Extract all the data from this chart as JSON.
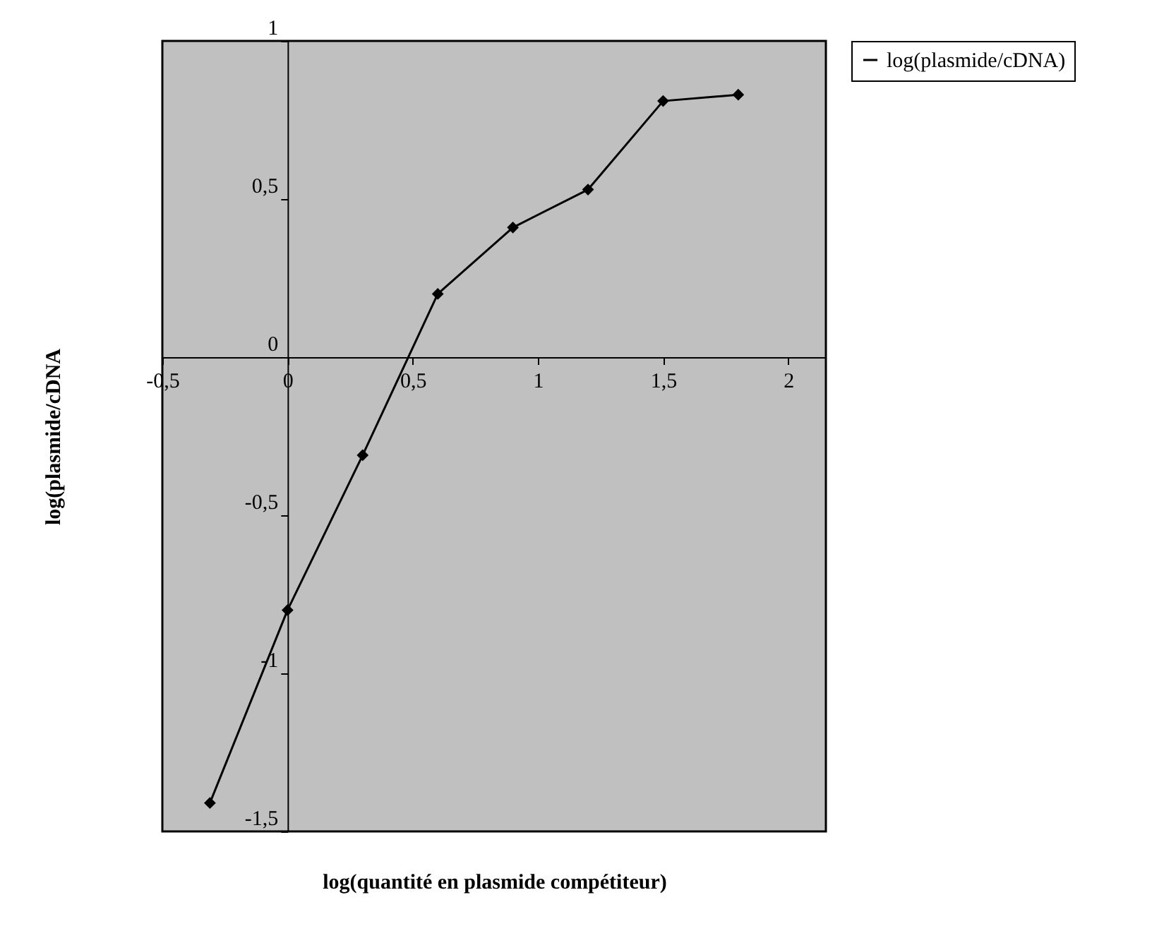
{
  "chart_data": {
    "type": "line",
    "xlabel": "log(quantité en plasmide compétiteur)",
    "ylabel": "log(plasmide/cDNA",
    "x": [
      -0.31,
      0,
      0.3,
      0.6,
      0.9,
      1.2,
      1.5,
      1.8
    ],
    "series": [
      {
        "name": "log(plasmide/cDNA)",
        "color": "#000000",
        "values": [
          -1.41,
          -0.8,
          -0.31,
          0.2,
          0.41,
          0.53,
          0.81,
          0.83
        ]
      }
    ],
    "xlim": [
      -0.5,
      2.15
    ],
    "ylim": [
      -1.5,
      1
    ],
    "xticks": [
      {
        "value": -0.5,
        "label": "-0,5"
      },
      0,
      {
        "value": 0.5,
        "label": "0,5"
      },
      1,
      {
        "value": 1.5,
        "label": "1,5"
      },
      2
    ],
    "yticks": [
      {
        "value": -1.5,
        "label": "-1,5"
      },
      -1,
      {
        "value": -0.5,
        "label": "-0,5"
      },
      0,
      {
        "value": 0.5,
        "label": "0,5"
      },
      1
    ],
    "grid": false,
    "legend": "top right",
    "marker": "diamond",
    "line_style": "solid"
  }
}
